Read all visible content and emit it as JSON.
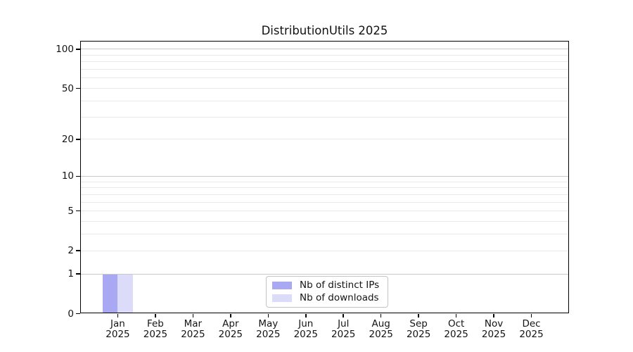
{
  "chart_data": {
    "type": "bar",
    "title": "DistributionUtils 2025",
    "x": {
      "year": "2025",
      "months": [
        "Jan",
        "Feb",
        "Mar",
        "Apr",
        "May",
        "Jun",
        "Jul",
        "Aug",
        "Sep",
        "Oct",
        "Nov",
        "Dec"
      ]
    },
    "series": [
      {
        "name": "Nb of distinct IPs",
        "color": "#a8a8f3",
        "values": [
          1,
          0,
          0,
          0,
          0,
          0,
          0,
          0,
          0,
          0,
          0,
          0
        ]
      },
      {
        "name": "Nb of downloads",
        "color": "#dcdcfa",
        "values": [
          1,
          0,
          0,
          0,
          0,
          0,
          0,
          0,
          0,
          0,
          0,
          0
        ]
      }
    ],
    "yscale": "log10(v+1)",
    "ylim": [
      0,
      116
    ],
    "yticks": [
      0,
      1,
      2,
      5,
      10,
      20,
      50,
      100
    ],
    "gridlines": {
      "major": [
        1,
        10,
        100
      ],
      "minor": [
        2,
        3,
        4,
        5,
        6,
        7,
        8,
        9,
        20,
        30,
        40,
        50,
        60,
        70,
        80,
        90
      ]
    },
    "grid": "horizontal",
    "legend_position": "bottom-center",
    "colors": {
      "grid_major": "#c9c9c9",
      "grid_minor": "#e9e9e9",
      "axis": "#000000",
      "text": "#141414",
      "background": "#ffffff"
    }
  }
}
